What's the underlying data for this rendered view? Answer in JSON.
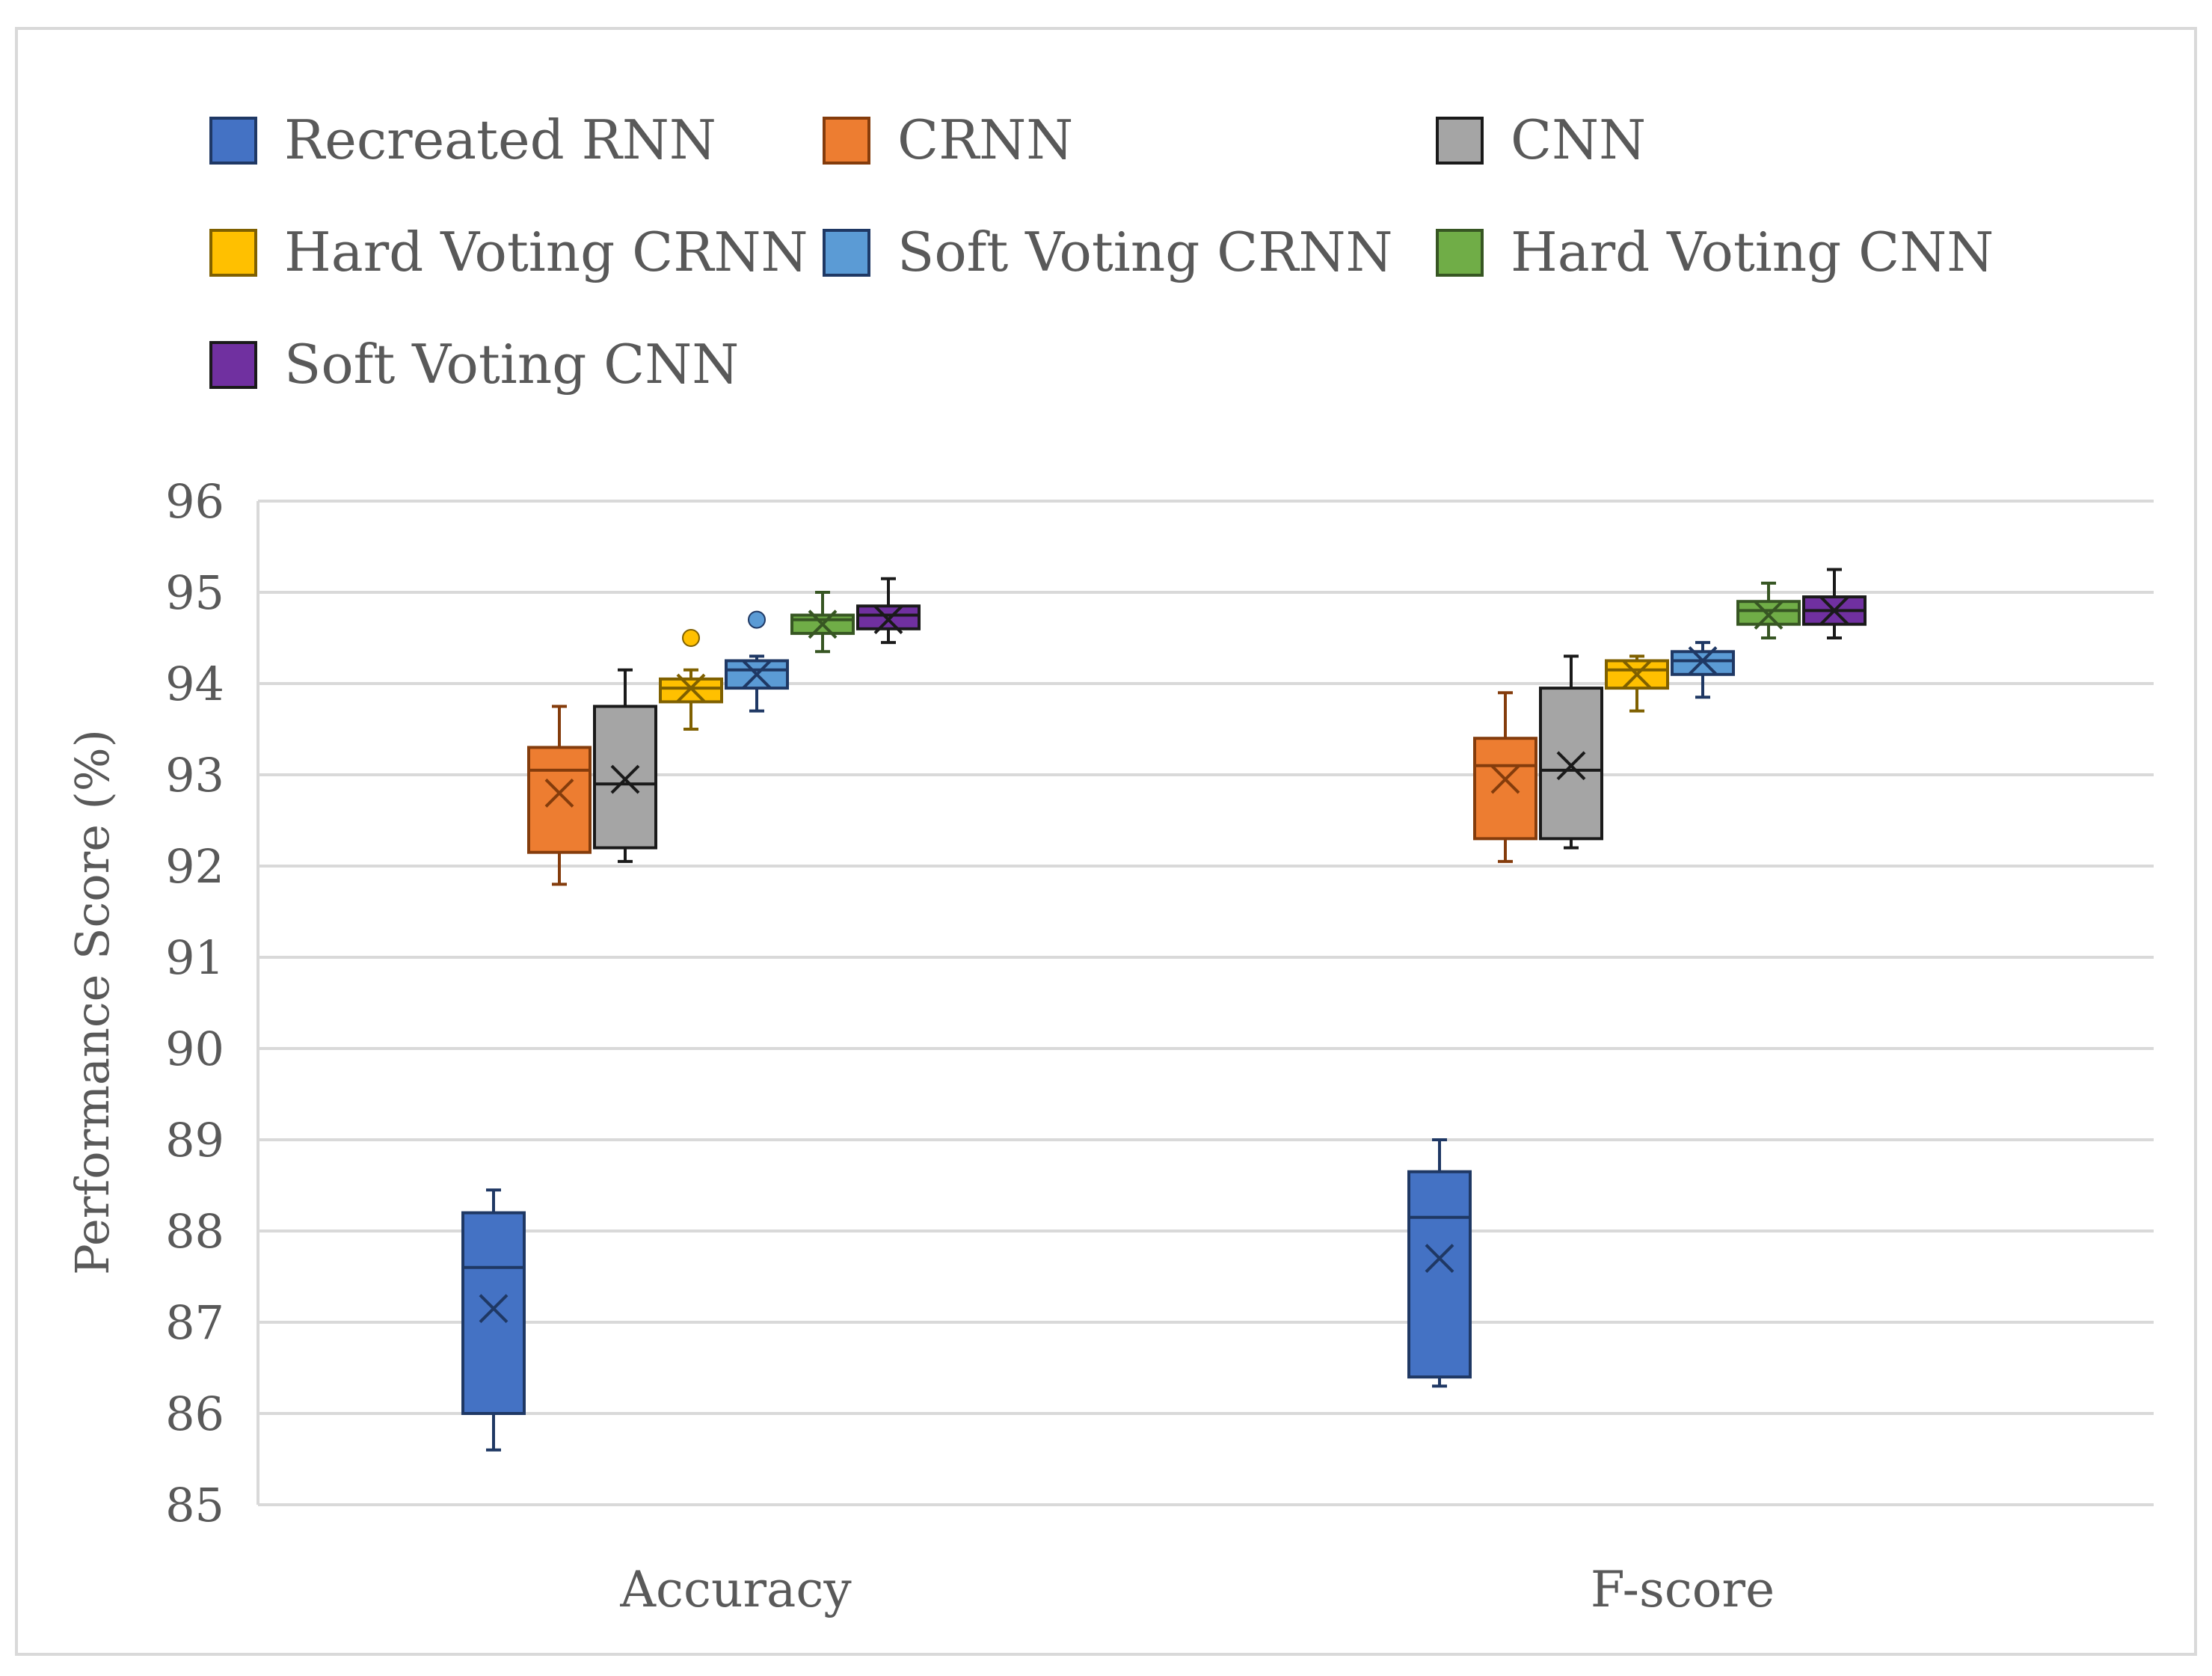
{
  "chart_data": {
    "type": "box",
    "xlabel": "",
    "ylabel": "Performance Score (%)",
    "ylim": [
      85,
      96
    ],
    "yticks": [
      85,
      86,
      87,
      88,
      89,
      90,
      91,
      92,
      93,
      94,
      95,
      96
    ],
    "grid": true,
    "legend_position": "top",
    "categories": [
      "Accuracy",
      "F-score"
    ],
    "series": [
      {
        "name": "Recreated RNN",
        "color": "#4472C4",
        "edge": "#1F3864",
        "boxes": [
          {
            "min": 85.6,
            "q1": 86.0,
            "median": 87.6,
            "q3": 88.2,
            "max": 88.45,
            "mean": 87.15,
            "outliers": []
          },
          {
            "min": 86.3,
            "q1": 86.4,
            "median": 88.15,
            "q3": 88.65,
            "max": 89.0,
            "mean": 87.7,
            "outliers": []
          }
        ]
      },
      {
        "name": "CRNN",
        "color": "#ED7D31",
        "edge": "#843C0C",
        "boxes": [
          {
            "min": 91.8,
            "q1": 92.15,
            "median": 93.05,
            "q3": 93.3,
            "max": 93.75,
            "mean": 92.8,
            "outliers": []
          },
          {
            "min": 92.05,
            "q1": 92.3,
            "median": 93.1,
            "q3": 93.4,
            "max": 93.9,
            "mean": 92.95,
            "outliers": []
          }
        ]
      },
      {
        "name": "CNN",
        "color": "#A5A5A5",
        "edge": "#1A1A1A",
        "boxes": [
          {
            "min": 92.05,
            "q1": 92.2,
            "median": 92.9,
            "q3": 93.75,
            "max": 94.15,
            "mean": 92.95,
            "outliers": []
          },
          {
            "min": 92.2,
            "q1": 92.3,
            "median": 93.05,
            "q3": 93.95,
            "max": 94.3,
            "mean": 93.1,
            "outliers": []
          }
        ]
      },
      {
        "name": "Hard Voting CRNN",
        "color": "#FFC000",
        "edge": "#7F6000",
        "boxes": [
          {
            "min": 93.5,
            "q1": 93.8,
            "median": 93.95,
            "q3": 94.05,
            "max": 94.15,
            "mean": 93.95,
            "outliers": [
              94.5
            ]
          },
          {
            "min": 93.7,
            "q1": 93.95,
            "median": 94.15,
            "q3": 94.25,
            "max": 94.3,
            "mean": 94.1,
            "outliers": []
          }
        ]
      },
      {
        "name": "Soft Voting CRNN",
        "color": "#5B9BD5",
        "edge": "#1F3864",
        "boxes": [
          {
            "min": 93.7,
            "q1": 93.95,
            "median": 94.15,
            "q3": 94.25,
            "max": 94.3,
            "mean": 94.1,
            "outliers": [
              94.7
            ]
          },
          {
            "min": 93.85,
            "q1": 94.1,
            "median": 94.25,
            "q3": 94.35,
            "max": 94.45,
            "mean": 94.25,
            "outliers": []
          }
        ]
      },
      {
        "name": "Hard Voting CNN",
        "color": "#70AD47",
        "edge": "#375623",
        "boxes": [
          {
            "min": 94.35,
            "q1": 94.55,
            "median": 94.7,
            "q3": 94.75,
            "max": 95.0,
            "mean": 94.65,
            "outliers": []
          },
          {
            "min": 94.5,
            "q1": 94.65,
            "median": 94.8,
            "q3": 94.9,
            "max": 95.1,
            "mean": 94.75,
            "outliers": []
          }
        ]
      },
      {
        "name": "Soft Voting CNN",
        "color": "#7030A0",
        "edge": "#1A1A1A",
        "boxes": [
          {
            "min": 94.45,
            "q1": 94.6,
            "median": 94.75,
            "q3": 94.85,
            "max": 95.15,
            "mean": 94.7,
            "outliers": []
          },
          {
            "min": 94.5,
            "q1": 94.65,
            "median": 94.8,
            "q3": 94.95,
            "max": 95.25,
            "mean": 94.8,
            "outliers": []
          }
        ]
      }
    ]
  }
}
